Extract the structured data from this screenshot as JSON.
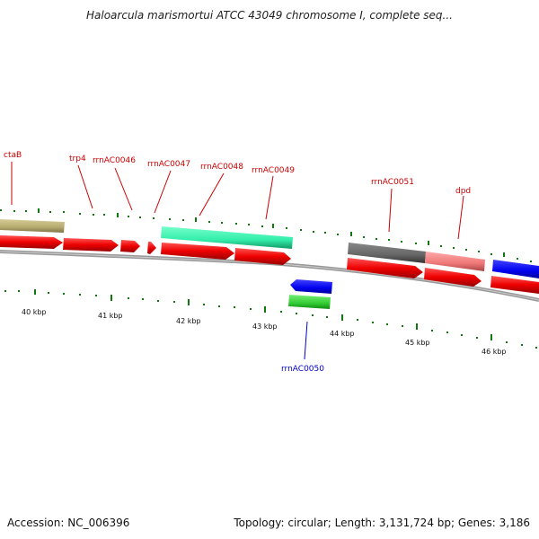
{
  "title": "Haloarcula marismortui ATCC 43049 chromosome I, complete seq...",
  "footer": {
    "accession": "Accession: NC_006396",
    "summary": "Topology: circular; Length: 3,131,724 bp; Genes: 3,186"
  },
  "kbp_labels": [
    "40 kbp",
    "41 kbp",
    "42 kbp",
    "43 kbp",
    "44 kbp",
    "45 kbp",
    "46 kbp"
  ],
  "gene_labels": [
    {
      "text": "ctaB",
      "color": "#cc0000"
    },
    {
      "text": "trp4",
      "color": "#cc0000"
    },
    {
      "text": "rrnAC0046",
      "color": "#cc0000"
    },
    {
      "text": "rrnAC0047",
      "color": "#cc0000"
    },
    {
      "text": "rrnAC0048",
      "color": "#cc0000"
    },
    {
      "text": "rrnAC0049",
      "color": "#cc0000"
    },
    {
      "text": "rrnAC0051",
      "color": "#cc0000"
    },
    {
      "text": "dpd",
      "color": "#cc0000"
    },
    {
      "text": "rrnAC0050",
      "color": "#0000cc"
    }
  ],
  "colors": {
    "cds": "#ee0000",
    "gene_tan": "#b5aa6e",
    "gene_teal": "#33eeaa",
    "gene_dark": "#666666",
    "gene_pink": "#ee7777",
    "gene_blue": "#0000ee",
    "gene_green": "#33cc33",
    "tick": "#117711",
    "backbone": "#888888"
  }
}
